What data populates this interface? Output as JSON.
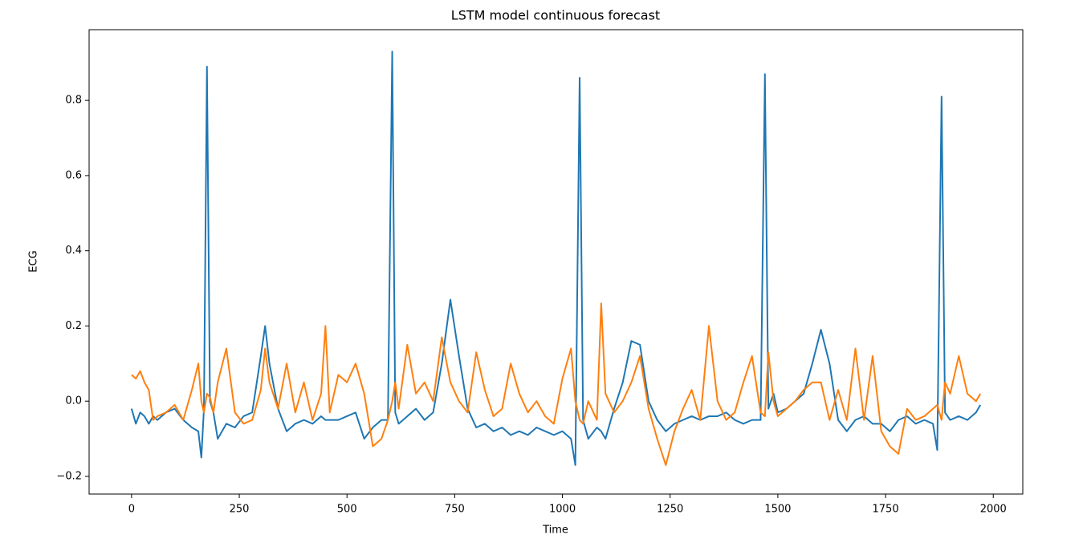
{
  "chart_data": {
    "type": "line",
    "title": "LSTM model continuous forecast",
    "x_label": "Time",
    "y_label": "ECG",
    "x": [
      0,
      10,
      20,
      30,
      40,
      50,
      60,
      80,
      100,
      120,
      140,
      155,
      162,
      168,
      175,
      182,
      190,
      200,
      220,
      240,
      260,
      280,
      300,
      310,
      320,
      340,
      360,
      380,
      400,
      420,
      440,
      450,
      460,
      480,
      500,
      520,
      540,
      560,
      580,
      595,
      605,
      612,
      620,
      640,
      660,
      680,
      700,
      720,
      740,
      760,
      780,
      800,
      820,
      840,
      860,
      880,
      900,
      920,
      940,
      960,
      980,
      1000,
      1020,
      1030,
      1040,
      1048,
      1060,
      1080,
      1090,
      1100,
      1120,
      1140,
      1160,
      1180,
      1200,
      1220,
      1240,
      1260,
      1280,
      1300,
      1320,
      1340,
      1360,
      1380,
      1400,
      1420,
      1440,
      1460,
      1470,
      1478,
      1490,
      1500,
      1520,
      1540,
      1560,
      1580,
      1600,
      1620,
      1640,
      1660,
      1680,
      1700,
      1720,
      1740,
      1760,
      1780,
      1800,
      1820,
      1840,
      1860,
      1870,
      1880,
      1888,
      1900,
      1920,
      1940,
      1960,
      1970
    ],
    "series": [
      {
        "color": "#1f77b4",
        "values": [
          -0.02,
          -0.06,
          -0.03,
          -0.04,
          -0.06,
          -0.04,
          -0.05,
          -0.03,
          -0.02,
          -0.05,
          -0.07,
          -0.08,
          -0.15,
          -0.02,
          0.89,
          0.0,
          -0.03,
          -0.1,
          -0.06,
          -0.07,
          -0.04,
          -0.03,
          0.12,
          0.2,
          0.1,
          -0.02,
          -0.08,
          -0.06,
          -0.05,
          -0.06,
          -0.04,
          -0.05,
          -0.05,
          -0.05,
          -0.04,
          -0.03,
          -0.1,
          -0.07,
          -0.05,
          -0.05,
          0.93,
          -0.03,
          -0.06,
          -0.04,
          -0.02,
          -0.05,
          -0.03,
          0.1,
          0.27,
          0.12,
          -0.02,
          -0.07,
          -0.06,
          -0.08,
          -0.07,
          -0.09,
          -0.08,
          -0.09,
          -0.07,
          -0.08,
          -0.09,
          -0.08,
          -0.1,
          -0.17,
          0.86,
          -0.05,
          -0.1,
          -0.07,
          -0.08,
          -0.1,
          -0.02,
          0.05,
          0.16,
          0.15,
          0.0,
          -0.05,
          -0.08,
          -0.06,
          -0.05,
          -0.04,
          -0.05,
          -0.04,
          -0.04,
          -0.03,
          -0.05,
          -0.06,
          -0.05,
          -0.05,
          0.87,
          -0.02,
          0.02,
          -0.03,
          -0.02,
          0.0,
          0.02,
          0.1,
          0.19,
          0.1,
          -0.05,
          -0.08,
          -0.05,
          -0.04,
          -0.06,
          -0.06,
          -0.08,
          -0.05,
          -0.04,
          -0.06,
          -0.05,
          -0.06,
          -0.13,
          0.81,
          -0.03,
          -0.05,
          -0.04,
          -0.05,
          -0.03,
          -0.01
        ]
      },
      {
        "color": "#ff7f0e",
        "values": [
          0.07,
          0.06,
          0.08,
          0.05,
          0.03,
          -0.05,
          -0.04,
          -0.03,
          -0.01,
          -0.05,
          0.03,
          0.1,
          0.0,
          -0.03,
          0.02,
          0.01,
          -0.03,
          0.05,
          0.14,
          -0.03,
          -0.06,
          -0.05,
          0.03,
          0.14,
          0.05,
          -0.02,
          0.1,
          -0.03,
          0.05,
          -0.05,
          0.02,
          0.2,
          -0.03,
          0.07,
          0.05,
          0.1,
          0.02,
          -0.12,
          -0.1,
          -0.05,
          0.0,
          0.05,
          -0.02,
          0.15,
          0.02,
          0.05,
          0.0,
          0.17,
          0.05,
          0.0,
          -0.03,
          0.13,
          0.03,
          -0.04,
          -0.02,
          0.1,
          0.02,
          -0.03,
          0.0,
          -0.04,
          -0.06,
          0.06,
          0.14,
          0.0,
          -0.05,
          -0.06,
          0.0,
          -0.05,
          0.26,
          0.02,
          -0.03,
          0.0,
          0.05,
          0.12,
          -0.02,
          -0.1,
          -0.17,
          -0.08,
          -0.02,
          0.03,
          -0.05,
          0.2,
          0.0,
          -0.05,
          -0.03,
          0.05,
          0.12,
          -0.03,
          -0.04,
          0.13,
          0.0,
          -0.04,
          -0.02,
          0.0,
          0.03,
          0.05,
          0.05,
          -0.05,
          0.03,
          -0.05,
          0.14,
          -0.05,
          0.12,
          -0.08,
          -0.12,
          -0.14,
          -0.02,
          -0.05,
          -0.04,
          -0.02,
          -0.01,
          -0.05,
          0.05,
          0.02,
          0.12,
          0.02,
          0.0,
          0.02
        ]
      }
    ],
    "xlim": [
      -98.5,
      2068.5
    ],
    "ylim": [
      -0.247,
      0.988
    ],
    "xticks": [
      0,
      250,
      500,
      750,
      1000,
      1250,
      1500,
      1750,
      2000
    ],
    "yticks": [
      {
        "value": -0.2,
        "label": "−0.2"
      },
      {
        "value": 0.0,
        "label": "0.0"
      },
      0.2,
      0.4,
      0.6,
      0.8
    ],
    "grid": false
  }
}
